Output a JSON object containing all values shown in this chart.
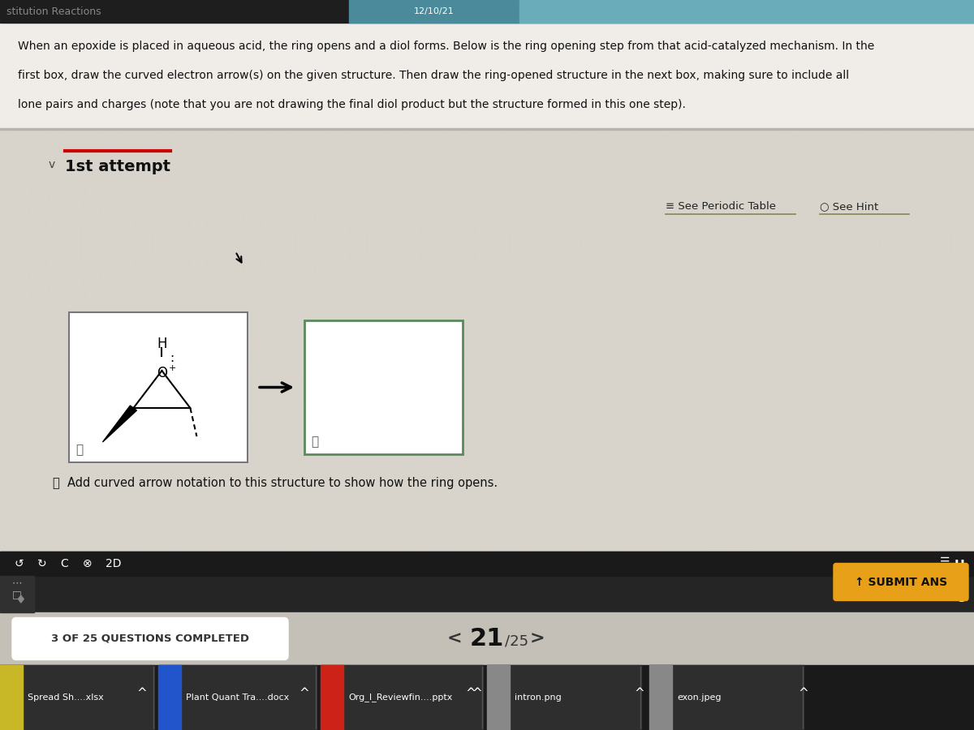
{
  "bg_top_dark": "#1a1a1a",
  "bg_main": "#d8d4cc",
  "bg_wavy": "#cdc9c0",
  "header_text": "stitution Reactions",
  "header_date": "12/10/21",
  "body_text_line1": "When an epoxide is placed in aqueous acid, the ring opens and a diol forms. Below is the ring opening step from that acid-catalyzed mechanism. In the",
  "body_text_line2": "first box, draw the curved electron arrow(s) on the given structure. Then draw the ring-opened structure in the next box, making sure to include all",
  "body_text_line3": "lone pairs and charges (note that you are not drawing the final diol product but the structure formed in this one step).",
  "attempt_label": "1st attempt",
  "see_periodic_table": "See Periodic Table",
  "see_hint": "See Hint",
  "instruction_text": "Add curved arrow notation to this structure to show how the ring opens.",
  "bottom_bar_text": "3 OF 25 QUESTIONS COMPLETED",
  "nav_text": "21",
  "nav_denom": "25",
  "submit_btn_text": "SUBMIT ANS",
  "taskbar_items": [
    "Spread Sh....xlsx",
    "Plant Quant Tra....docx",
    "Org_I_Reviewfin....pptx",
    "intron.png",
    "exon.jpeg"
  ],
  "taskbar_icons": [
    "□",
    "📄",
    "📄",
    "🖼",
    "🖼"
  ],
  "taskbar_colors": [
    "#c8b828",
    "#2255cc",
    "#cc2218",
    "#888888",
    "#888888"
  ]
}
